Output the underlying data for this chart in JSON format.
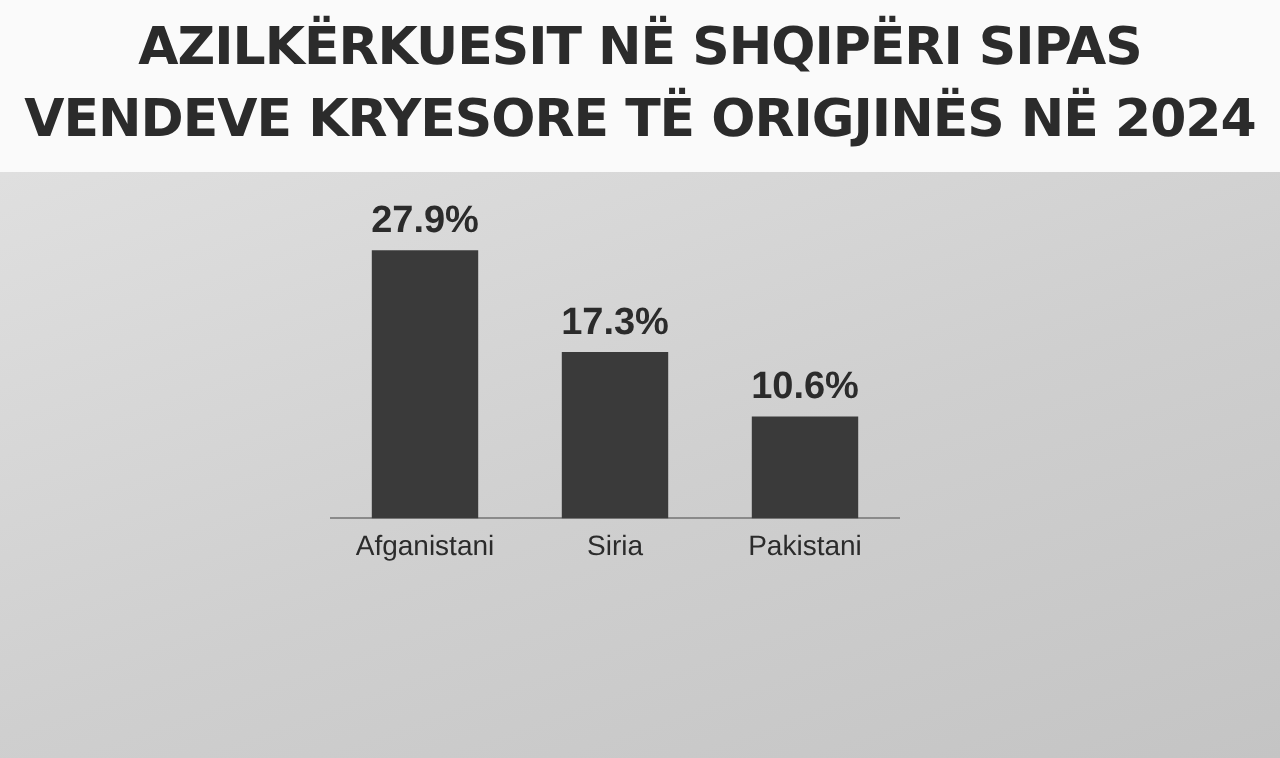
{
  "chart_data": {
    "type": "bar",
    "title": "AZILKËRKUESIT NË SHQIPËRI SIPAS\nVENDEVE KRYESORE TË ORIGJINËS NË 2024",
    "categories": [
      "Afganistani",
      "Siria",
      "Pakistani"
    ],
    "values": [
      27.9,
      17.3,
      10.6
    ],
    "value_labels": [
      "27.9%",
      "17.3%",
      "10.6%"
    ],
    "color": "#3a3a3a",
    "grid": false,
    "legend": false
  }
}
